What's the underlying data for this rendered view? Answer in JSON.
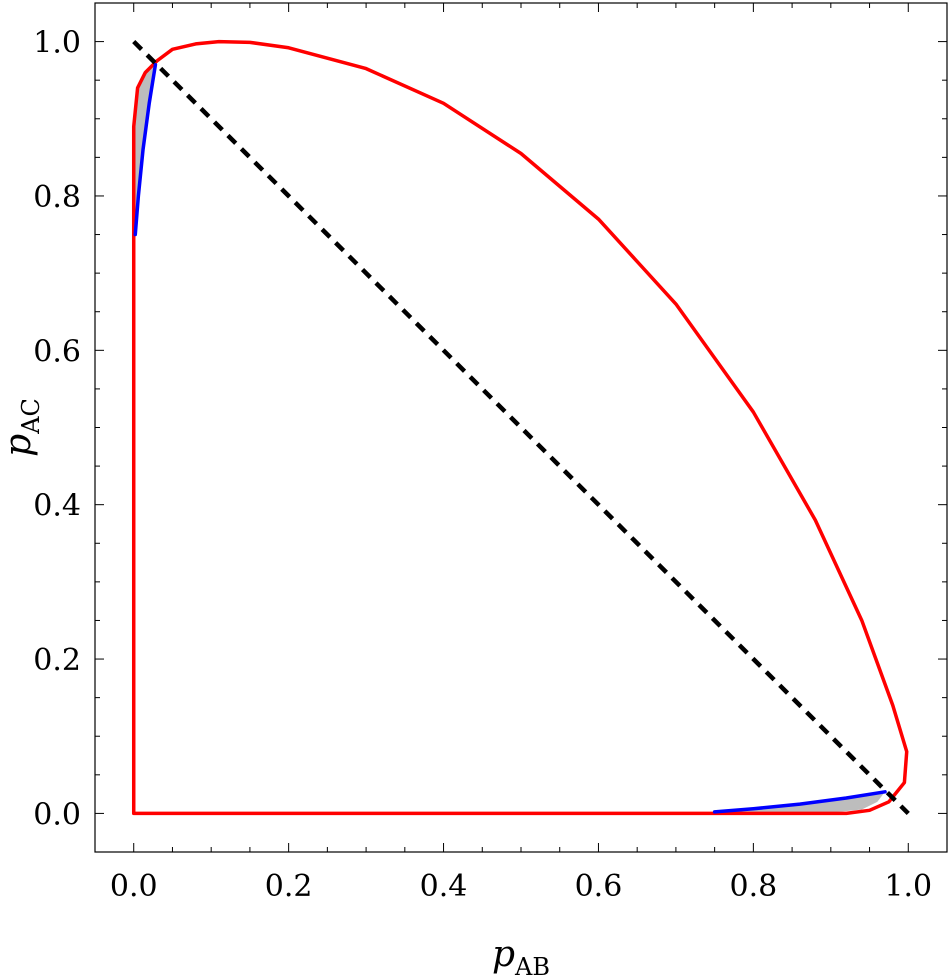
{
  "chart_data": {
    "type": "line",
    "title": "",
    "xlabel": {
      "main": "p",
      "sub": "AB"
    },
    "ylabel": {
      "main": "p",
      "sub": "AC"
    },
    "xlim": [
      -0.05,
      1.05
    ],
    "ylim": [
      -0.05,
      1.05
    ],
    "grid": false,
    "xticks": [
      "0.0",
      "0.2",
      "0.4",
      "0.6",
      "0.8",
      "1.0"
    ],
    "yticks": [
      "0.0",
      "0.2",
      "0.4",
      "0.6",
      "0.8",
      "1.0"
    ],
    "series": [
      {
        "style": "red-boundary",
        "color": "#ff0000",
        "points": [
          [
            0.0,
            0.0
          ],
          [
            0.0,
            0.7
          ],
          [
            0.0,
            0.89
          ],
          [
            0.005,
            0.94
          ],
          [
            0.015,
            0.96
          ],
          [
            0.03,
            0.975
          ],
          [
            0.05,
            0.99
          ],
          [
            0.08,
            0.997
          ],
          [
            0.11,
            1.0
          ],
          [
            0.15,
            0.999
          ],
          [
            0.2,
            0.992
          ],
          [
            0.3,
            0.965
          ],
          [
            0.4,
            0.92
          ],
          [
            0.5,
            0.855
          ],
          [
            0.6,
            0.77
          ],
          [
            0.7,
            0.66
          ],
          [
            0.8,
            0.52
          ],
          [
            0.88,
            0.38
          ],
          [
            0.94,
            0.25
          ],
          [
            0.98,
            0.14
          ],
          [
            0.998,
            0.08
          ],
          [
            0.995,
            0.04
          ],
          [
            0.975,
            0.015
          ],
          [
            0.95,
            0.004
          ],
          [
            0.92,
            0.0
          ],
          [
            0.89,
            0.0
          ],
          [
            0.7,
            0.0
          ],
          [
            0.0,
            0.0
          ]
        ]
      },
      {
        "style": "blue-upper",
        "color": "#0000ff",
        "points": [
          [
            0.002,
            0.75
          ],
          [
            0.006,
            0.8
          ],
          [
            0.012,
            0.86
          ],
          [
            0.02,
            0.92
          ],
          [
            0.028,
            0.97
          ]
        ]
      },
      {
        "style": "blue-lower",
        "color": "#0000ff",
        "points": [
          [
            0.75,
            0.002
          ],
          [
            0.8,
            0.006
          ],
          [
            0.86,
            0.012
          ],
          [
            0.92,
            0.02
          ],
          [
            0.97,
            0.028
          ]
        ]
      },
      {
        "style": "black-dashed",
        "color": "#000000",
        "points": [
          [
            0.0,
            1.0
          ],
          [
            1.0,
            0.0
          ]
        ]
      }
    ],
    "shaded_regions": [
      {
        "color": "#bdbdbd",
        "points": [
          [
            0.002,
            0.75
          ],
          [
            0.0,
            0.89
          ],
          [
            0.005,
            0.94
          ],
          [
            0.015,
            0.96
          ],
          [
            0.028,
            0.97
          ],
          [
            0.02,
            0.92
          ],
          [
            0.012,
            0.86
          ],
          [
            0.006,
            0.8
          ]
        ]
      },
      {
        "color": "#bdbdbd",
        "points": [
          [
            0.75,
            0.002
          ],
          [
            0.89,
            0.0
          ],
          [
            0.94,
            0.005
          ],
          [
            0.96,
            0.015
          ],
          [
            0.97,
            0.028
          ],
          [
            0.92,
            0.02
          ],
          [
            0.86,
            0.012
          ],
          [
            0.8,
            0.006
          ]
        ]
      }
    ]
  }
}
